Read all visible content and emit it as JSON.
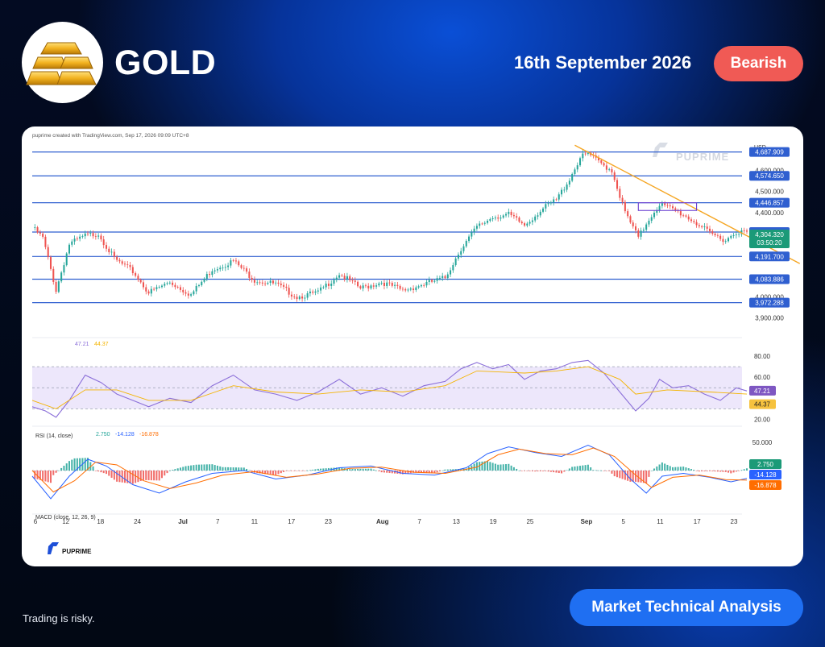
{
  "header": {
    "title": "GOLD",
    "date": "16th September 2026",
    "sentiment": "Bearish"
  },
  "footer": {
    "disclaimer": "Trading is risky.",
    "cta": "Market Technical Analysis"
  },
  "brand": {
    "watermark": "PUPRIME",
    "bottom_logo": "PUPRIME",
    "source_line": "puprime created with TradingView.com, Sep 17, 2026 09:09 UTC+8"
  },
  "colors": {
    "accent": "#1f6ff2",
    "bearish": "#f05a55",
    "up": "#26a69a",
    "down": "#ef5350",
    "level_line": "#2f5fd0",
    "trendline": "#f5a623",
    "rsi": "#8b6fd9",
    "rsi_ma": "#f4b400",
    "macd": "#2962ff",
    "signal": "#ff6d00"
  },
  "chart_data": [
    {
      "type": "candlestick",
      "title": "",
      "currency": "USD",
      "ylim": [
        3860,
        4740
      ],
      "y_ticks": [
        3900,
        4000,
        4100,
        4200,
        4300,
        4400,
        4500,
        4600
      ],
      "y_tick_labels": [
        "3,900.000",
        "4,000.000",
        "",
        "",
        "",
        "4,400.000",
        "4,500.000",
        "4,600.000"
      ],
      "x_tick_labels": [
        "6",
        "12",
        "18",
        "24",
        "Jul",
        "7",
        "11",
        "17",
        "23",
        "Aug",
        "7",
        "13",
        "19",
        "25",
        "Sep",
        "5",
        "11",
        "17",
        "23"
      ],
      "x_tick_bold": [
        "Jul",
        "Aug",
        "Sep"
      ],
      "close_path": [
        {
          "x": 0,
          "y": 4330
        },
        {
          "x": 4,
          "y": 4280
        },
        {
          "x": 9,
          "y": 4030
        },
        {
          "x": 14,
          "y": 4250
        },
        {
          "x": 20,
          "y": 4290
        },
        {
          "x": 25,
          "y": 4300
        },
        {
          "x": 31,
          "y": 4180
        },
        {
          "x": 38,
          "y": 4120
        },
        {
          "x": 44,
          "y": 4020
        },
        {
          "x": 52,
          "y": 4070
        },
        {
          "x": 60,
          "y": 4010
        },
        {
          "x": 68,
          "y": 4130
        },
        {
          "x": 76,
          "y": 4170
        },
        {
          "x": 84,
          "y": 4080
        },
        {
          "x": 92,
          "y": 4060
        },
        {
          "x": 100,
          "y": 4000
        },
        {
          "x": 108,
          "y": 4020
        },
        {
          "x": 116,
          "y": 4110
        },
        {
          "x": 124,
          "y": 4040
        },
        {
          "x": 132,
          "y": 4070
        },
        {
          "x": 140,
          "y": 4030
        },
        {
          "x": 148,
          "y": 4060
        },
        {
          "x": 156,
          "y": 4090
        },
        {
          "x": 162,
          "y": 4230
        },
        {
          "x": 168,
          "y": 4330
        },
        {
          "x": 174,
          "y": 4380
        },
        {
          "x": 180,
          "y": 4390
        },
        {
          "x": 186,
          "y": 4340
        },
        {
          "x": 192,
          "y": 4410
        },
        {
          "x": 198,
          "y": 4460
        },
        {
          "x": 203,
          "y": 4560
        },
        {
          "x": 207,
          "y": 4660
        },
        {
          "x": 210,
          "y": 4680
        },
        {
          "x": 214,
          "y": 4640
        },
        {
          "x": 219,
          "y": 4600
        },
        {
          "x": 224,
          "y": 4400
        },
        {
          "x": 229,
          "y": 4280
        },
        {
          "x": 233,
          "y": 4370
        },
        {
          "x": 237,
          "y": 4440
        },
        {
          "x": 241,
          "y": 4420
        },
        {
          "x": 246,
          "y": 4390
        },
        {
          "x": 251,
          "y": 4350
        },
        {
          "x": 256,
          "y": 4300
        },
        {
          "x": 262,
          "y": 4270
        },
        {
          "x": 266,
          "y": 4310
        },
        {
          "x": 270,
          "y": 4304
        }
      ],
      "horizontal_levels": [
        {
          "value": 4687.909,
          "label": "4,687.909"
        },
        {
          "value": 4574.65,
          "label": "4,574.650"
        },
        {
          "value": 4446.857,
          "label": "4,446.857"
        },
        {
          "value": 4307.639,
          "label": "4,307.639"
        },
        {
          "value": 4191.7,
          "label": "4,191.700"
        },
        {
          "value": 4083.886,
          "label": "4,083.886"
        },
        {
          "value": 3972.288,
          "label": "3,972.288"
        }
      ],
      "current_price": {
        "label": "4,304.320",
        "countdown": "03:50:20"
      },
      "trendline": [
        {
          "x": 205,
          "y": 4720
        },
        {
          "x": 290,
          "y": 4158
        }
      ],
      "resistance_box": {
        "x_start": 229,
        "x_end": 251,
        "y_low": 4410,
        "y_high": 4446.857
      }
    },
    {
      "type": "line",
      "title": "RSI (14, close)",
      "values_label": [
        "47.21",
        "44.37"
      ],
      "ylim": [
        15,
        90
      ],
      "y_tick_labels": [
        "80.00",
        "60.00",
        "20.00"
      ],
      "bands": {
        "upper": 70,
        "middle": 50,
        "lower": 30
      },
      "series": [
        {
          "name": "RSI",
          "points": [
            [
              0,
              32
            ],
            [
              5,
              28
            ],
            [
              9,
              22
            ],
            [
              14,
              38
            ],
            [
              20,
              62
            ],
            [
              26,
              55
            ],
            [
              32,
              44
            ],
            [
              38,
              38
            ],
            [
              44,
              32
            ],
            [
              52,
              40
            ],
            [
              60,
              36
            ],
            [
              68,
              52
            ],
            [
              76,
              62
            ],
            [
              84,
              48
            ],
            [
              92,
              44
            ],
            [
              100,
              38
            ],
            [
              108,
              46
            ],
            [
              116,
              58
            ],
            [
              124,
              44
            ],
            [
              132,
              50
            ],
            [
              140,
              42
            ],
            [
              148,
              52
            ],
            [
              156,
              56
            ],
            [
              162,
              68
            ],
            [
              168,
              74
            ],
            [
              174,
              68
            ],
            [
              180,
              72
            ],
            [
              186,
              58
            ],
            [
              192,
              66
            ],
            [
              198,
              68
            ],
            [
              204,
              74
            ],
            [
              210,
              76
            ],
            [
              216,
              64
            ],
            [
              222,
              46
            ],
            [
              228,
              28
            ],
            [
              233,
              40
            ],
            [
              237,
              58
            ],
            [
              242,
              50
            ],
            [
              248,
              52
            ],
            [
              254,
              44
            ],
            [
              260,
              38
            ],
            [
              266,
              50
            ],
            [
              270,
              47
            ]
          ]
        },
        {
          "name": "RSI-based MA",
          "points": [
            [
              0,
              38
            ],
            [
              9,
              30
            ],
            [
              20,
              48
            ],
            [
              32,
              48
            ],
            [
              44,
              38
            ],
            [
              60,
              38
            ],
            [
              76,
              52
            ],
            [
              92,
              46
            ],
            [
              108,
              44
            ],
            [
              124,
              48
            ],
            [
              140,
              46
            ],
            [
              156,
              52
            ],
            [
              168,
              66
            ],
            [
              186,
              64
            ],
            [
              198,
              66
            ],
            [
              210,
              70
            ],
            [
              222,
              58
            ],
            [
              228,
              44
            ],
            [
              240,
              48
            ],
            [
              256,
              46
            ],
            [
              270,
              44
            ]
          ]
        }
      ]
    },
    {
      "type": "line",
      "title": "MACD (close, 12, 26, 9)",
      "values_label": [
        "2.750",
        "-14.128",
        "-16.878"
      ],
      "ylim": [
        -70,
        70
      ],
      "y_tick_labels": [
        "50.000"
      ],
      "series": [
        {
          "name": "MACD",
          "points": [
            [
              0,
              -10
            ],
            [
              7,
              -50
            ],
            [
              14,
              -10
            ],
            [
              21,
              20
            ],
            [
              28,
              8
            ],
            [
              38,
              -25
            ],
            [
              48,
              -40
            ],
            [
              58,
              -20
            ],
            [
              68,
              -5
            ],
            [
              80,
              0
            ],
            [
              92,
              -15
            ],
            [
              104,
              -8
            ],
            [
              116,
              5
            ],
            [
              128,
              8
            ],
            [
              140,
              -5
            ],
            [
              152,
              -8
            ],
            [
              164,
              5
            ],
            [
              172,
              30
            ],
            [
              180,
              42
            ],
            [
              190,
              32
            ],
            [
              200,
              25
            ],
            [
              210,
              45
            ],
            [
              218,
              28
            ],
            [
              226,
              -15
            ],
            [
              232,
              -40
            ],
            [
              238,
              -10
            ],
            [
              246,
              -5
            ],
            [
              256,
              -12
            ],
            [
              264,
              -20
            ],
            [
              270,
              -14
            ]
          ]
        },
        {
          "name": "Signal",
          "points": [
            [
              0,
              0
            ],
            [
              8,
              -38
            ],
            [
              16,
              -18
            ],
            [
              24,
              15
            ],
            [
              32,
              10
            ],
            [
              42,
              -18
            ],
            [
              52,
              -32
            ],
            [
              62,
              -22
            ],
            [
              72,
              -8
            ],
            [
              84,
              -2
            ],
            [
              96,
              -12
            ],
            [
              108,
              -6
            ],
            [
              120,
              4
            ],
            [
              132,
              6
            ],
            [
              144,
              -3
            ],
            [
              156,
              -5
            ],
            [
              168,
              6
            ],
            [
              176,
              28
            ],
            [
              184,
              38
            ],
            [
              194,
              30
            ],
            [
              204,
              28
            ],
            [
              212,
              40
            ],
            [
              220,
              25
            ],
            [
              228,
              -8
            ],
            [
              234,
              -30
            ],
            [
              242,
              -12
            ],
            [
              252,
              -8
            ],
            [
              262,
              -16
            ],
            [
              270,
              -17
            ]
          ]
        }
      ]
    }
  ]
}
